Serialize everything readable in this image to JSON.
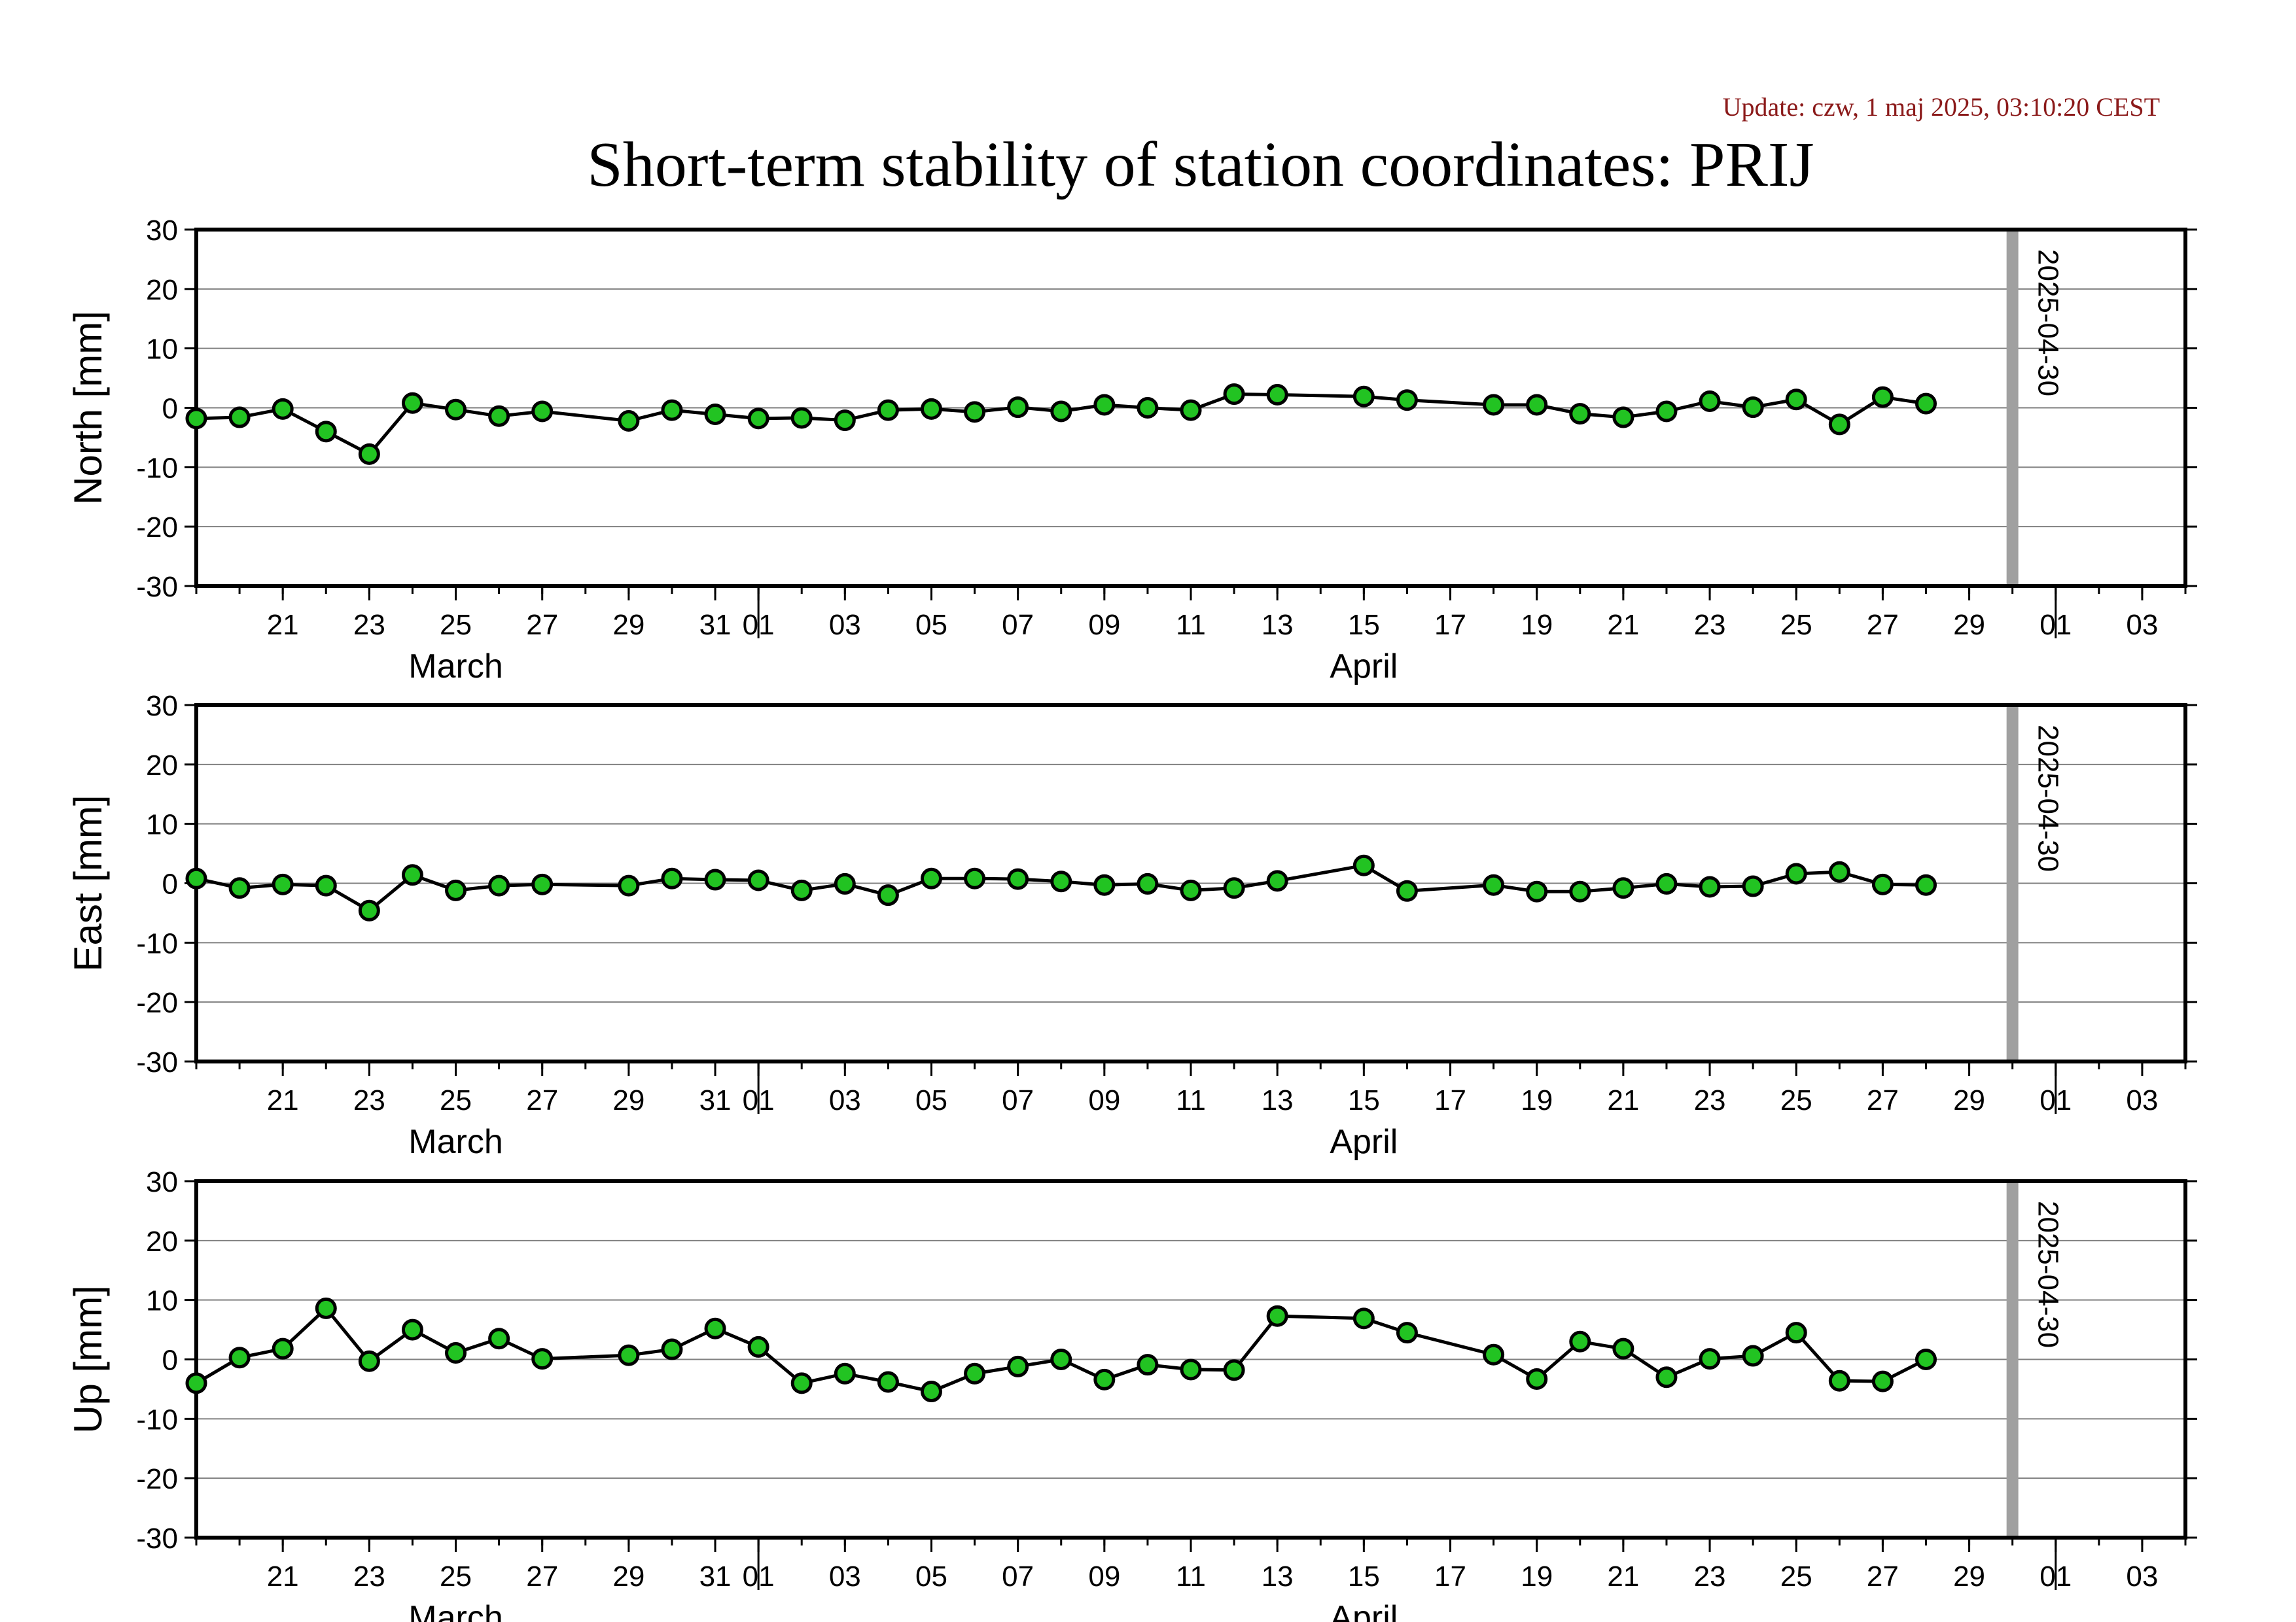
{
  "update_text": "Update: czw, 1 maj 2025, 03:10:20 CEST",
  "chart_data": {
    "type": "line",
    "title": "Short-term stability of station coordinates: PRIJ",
    "x_range": [
      "2025-03-19",
      "2025-05-04"
    ],
    "x_ticks": [
      {
        "date": "2025-03-21",
        "label": "21"
      },
      {
        "date": "2025-03-23",
        "label": "23"
      },
      {
        "date": "2025-03-25",
        "label": "25"
      },
      {
        "date": "2025-03-27",
        "label": "27"
      },
      {
        "date": "2025-03-29",
        "label": "29"
      },
      {
        "date": "2025-03-31",
        "label": "31"
      },
      {
        "date": "2025-04-01",
        "label": "01"
      },
      {
        "date": "2025-04-03",
        "label": "03"
      },
      {
        "date": "2025-04-05",
        "label": "05"
      },
      {
        "date": "2025-04-07",
        "label": "07"
      },
      {
        "date": "2025-04-09",
        "label": "09"
      },
      {
        "date": "2025-04-11",
        "label": "11"
      },
      {
        "date": "2025-04-13",
        "label": "13"
      },
      {
        "date": "2025-04-15",
        "label": "15"
      },
      {
        "date": "2025-04-17",
        "label": "17"
      },
      {
        "date": "2025-04-19",
        "label": "19"
      },
      {
        "date": "2025-04-21",
        "label": "21"
      },
      {
        "date": "2025-04-23",
        "label": "23"
      },
      {
        "date": "2025-04-25",
        "label": "25"
      },
      {
        "date": "2025-04-27",
        "label": "27"
      },
      {
        "date": "2025-04-29",
        "label": "29"
      },
      {
        "date": "2025-05-01",
        "label": "01"
      },
      {
        "date": "2025-05-03",
        "label": "03"
      }
    ],
    "month_labels": [
      {
        "date": "2025-03-25",
        "label": "March"
      },
      {
        "date": "2025-04-15",
        "label": "April"
      }
    ],
    "month_boundaries": [
      "2025-04-01",
      "2025-05-01"
    ],
    "marker_line": {
      "date": "2025-04-30",
      "label": "2025-04-30",
      "color": "#a0a0a0"
    },
    "ylim": [
      -30,
      30
    ],
    "y_ticks": [
      30,
      20,
      10,
      0,
      -10,
      -20,
      -30
    ],
    "grid": true,
    "marker_color": "#22c322",
    "panels": [
      {
        "ylabel": "North [mm]",
        "points": [
          [
            "2025-03-19",
            -1.8
          ],
          [
            "2025-03-20",
            -1.6
          ],
          [
            "2025-03-21",
            -0.2
          ],
          [
            "2025-03-22",
            -4.0
          ],
          [
            "2025-03-23",
            -7.8
          ],
          [
            "2025-03-24",
            0.8
          ],
          [
            "2025-03-25",
            -0.3
          ],
          [
            "2025-03-26",
            -1.4
          ],
          [
            "2025-03-27",
            -0.6
          ],
          [
            "2025-03-29",
            -2.2
          ],
          [
            "2025-03-30",
            -0.4
          ],
          [
            "2025-03-31",
            -1.1
          ],
          [
            "2025-04-01",
            -1.8
          ],
          [
            "2025-04-02",
            -1.7
          ],
          [
            "2025-04-03",
            -2.1
          ],
          [
            "2025-04-04",
            -0.4
          ],
          [
            "2025-04-05",
            -0.2
          ],
          [
            "2025-04-06",
            -0.7
          ],
          [
            "2025-04-07",
            0.1
          ],
          [
            "2025-04-08",
            -0.6
          ],
          [
            "2025-04-09",
            0.5
          ],
          [
            "2025-04-10",
            0.0
          ],
          [
            "2025-04-11",
            -0.4
          ],
          [
            "2025-04-12",
            2.3
          ],
          [
            "2025-04-13",
            2.2
          ],
          [
            "2025-04-15",
            1.9
          ],
          [
            "2025-04-16",
            1.3
          ],
          [
            "2025-04-18",
            0.5
          ],
          [
            "2025-04-19",
            0.5
          ],
          [
            "2025-04-20",
            -1.0
          ],
          [
            "2025-04-21",
            -1.6
          ],
          [
            "2025-04-22",
            -0.6
          ],
          [
            "2025-04-23",
            1.1
          ],
          [
            "2025-04-24",
            0.1
          ],
          [
            "2025-04-25",
            1.4
          ],
          [
            "2025-04-26",
            -2.8
          ],
          [
            "2025-04-27",
            1.8
          ],
          [
            "2025-04-28",
            0.7
          ]
        ]
      },
      {
        "ylabel": "East [mm]",
        "points": [
          [
            "2025-03-19",
            0.8
          ],
          [
            "2025-03-20",
            -0.8
          ],
          [
            "2025-03-21",
            -0.2
          ],
          [
            "2025-03-22",
            -0.4
          ],
          [
            "2025-03-23",
            -4.6
          ],
          [
            "2025-03-24",
            1.4
          ],
          [
            "2025-03-25",
            -1.2
          ],
          [
            "2025-03-26",
            -0.4
          ],
          [
            "2025-03-27",
            -0.2
          ],
          [
            "2025-03-29",
            -0.4
          ],
          [
            "2025-03-30",
            0.8
          ],
          [
            "2025-03-31",
            0.6
          ],
          [
            "2025-04-01",
            0.5
          ],
          [
            "2025-04-02",
            -1.2
          ],
          [
            "2025-04-03",
            -0.1
          ],
          [
            "2025-04-04",
            -2.0
          ],
          [
            "2025-04-05",
            0.8
          ],
          [
            "2025-04-06",
            0.8
          ],
          [
            "2025-04-07",
            0.7
          ],
          [
            "2025-04-08",
            0.3
          ],
          [
            "2025-04-09",
            -0.3
          ],
          [
            "2025-04-10",
            -0.1
          ],
          [
            "2025-04-11",
            -1.2
          ],
          [
            "2025-04-12",
            -0.8
          ],
          [
            "2025-04-13",
            0.4
          ],
          [
            "2025-04-15",
            3.0
          ],
          [
            "2025-04-16",
            -1.3
          ],
          [
            "2025-04-18",
            -0.3
          ],
          [
            "2025-04-19",
            -1.4
          ],
          [
            "2025-04-20",
            -1.4
          ],
          [
            "2025-04-21",
            -0.8
          ],
          [
            "2025-04-22",
            -0.1
          ],
          [
            "2025-04-23",
            -0.6
          ],
          [
            "2025-04-24",
            -0.5
          ],
          [
            "2025-04-25",
            1.6
          ],
          [
            "2025-04-26",
            1.9
          ],
          [
            "2025-04-27",
            -0.2
          ],
          [
            "2025-04-28",
            -0.3
          ]
        ]
      },
      {
        "ylabel": "Up [mm]",
        "points": [
          [
            "2025-03-19",
            -4.0
          ],
          [
            "2025-03-20",
            0.3
          ],
          [
            "2025-03-21",
            1.8
          ],
          [
            "2025-03-22",
            8.6
          ],
          [
            "2025-03-23",
            -0.3
          ],
          [
            "2025-03-24",
            5.0
          ],
          [
            "2025-03-25",
            1.1
          ],
          [
            "2025-03-26",
            3.5
          ],
          [
            "2025-03-27",
            0.1
          ],
          [
            "2025-03-29",
            0.7
          ],
          [
            "2025-03-30",
            1.7
          ],
          [
            "2025-03-31",
            5.2
          ],
          [
            "2025-04-01",
            2.1
          ],
          [
            "2025-04-02",
            -4.0
          ],
          [
            "2025-04-03",
            -2.4
          ],
          [
            "2025-04-04",
            -3.8
          ],
          [
            "2025-04-05",
            -5.4
          ],
          [
            "2025-04-06",
            -2.4
          ],
          [
            "2025-04-07",
            -1.2
          ],
          [
            "2025-04-08",
            0.0
          ],
          [
            "2025-04-09",
            -3.4
          ],
          [
            "2025-04-10",
            -0.9
          ],
          [
            "2025-04-11",
            -1.7
          ],
          [
            "2025-04-12",
            -1.8
          ],
          [
            "2025-04-13",
            7.3
          ],
          [
            "2025-04-15",
            6.9
          ],
          [
            "2025-04-16",
            4.5
          ],
          [
            "2025-04-18",
            0.8
          ],
          [
            "2025-04-19",
            -3.3
          ],
          [
            "2025-04-20",
            3.0
          ],
          [
            "2025-04-21",
            1.8
          ],
          [
            "2025-04-22",
            -3.0
          ],
          [
            "2025-04-23",
            0.1
          ],
          [
            "2025-04-24",
            0.6
          ],
          [
            "2025-04-25",
            4.5
          ],
          [
            "2025-04-26",
            -3.6
          ],
          [
            "2025-04-27",
            -3.7
          ],
          [
            "2025-04-28",
            0.0
          ]
        ]
      }
    ]
  }
}
